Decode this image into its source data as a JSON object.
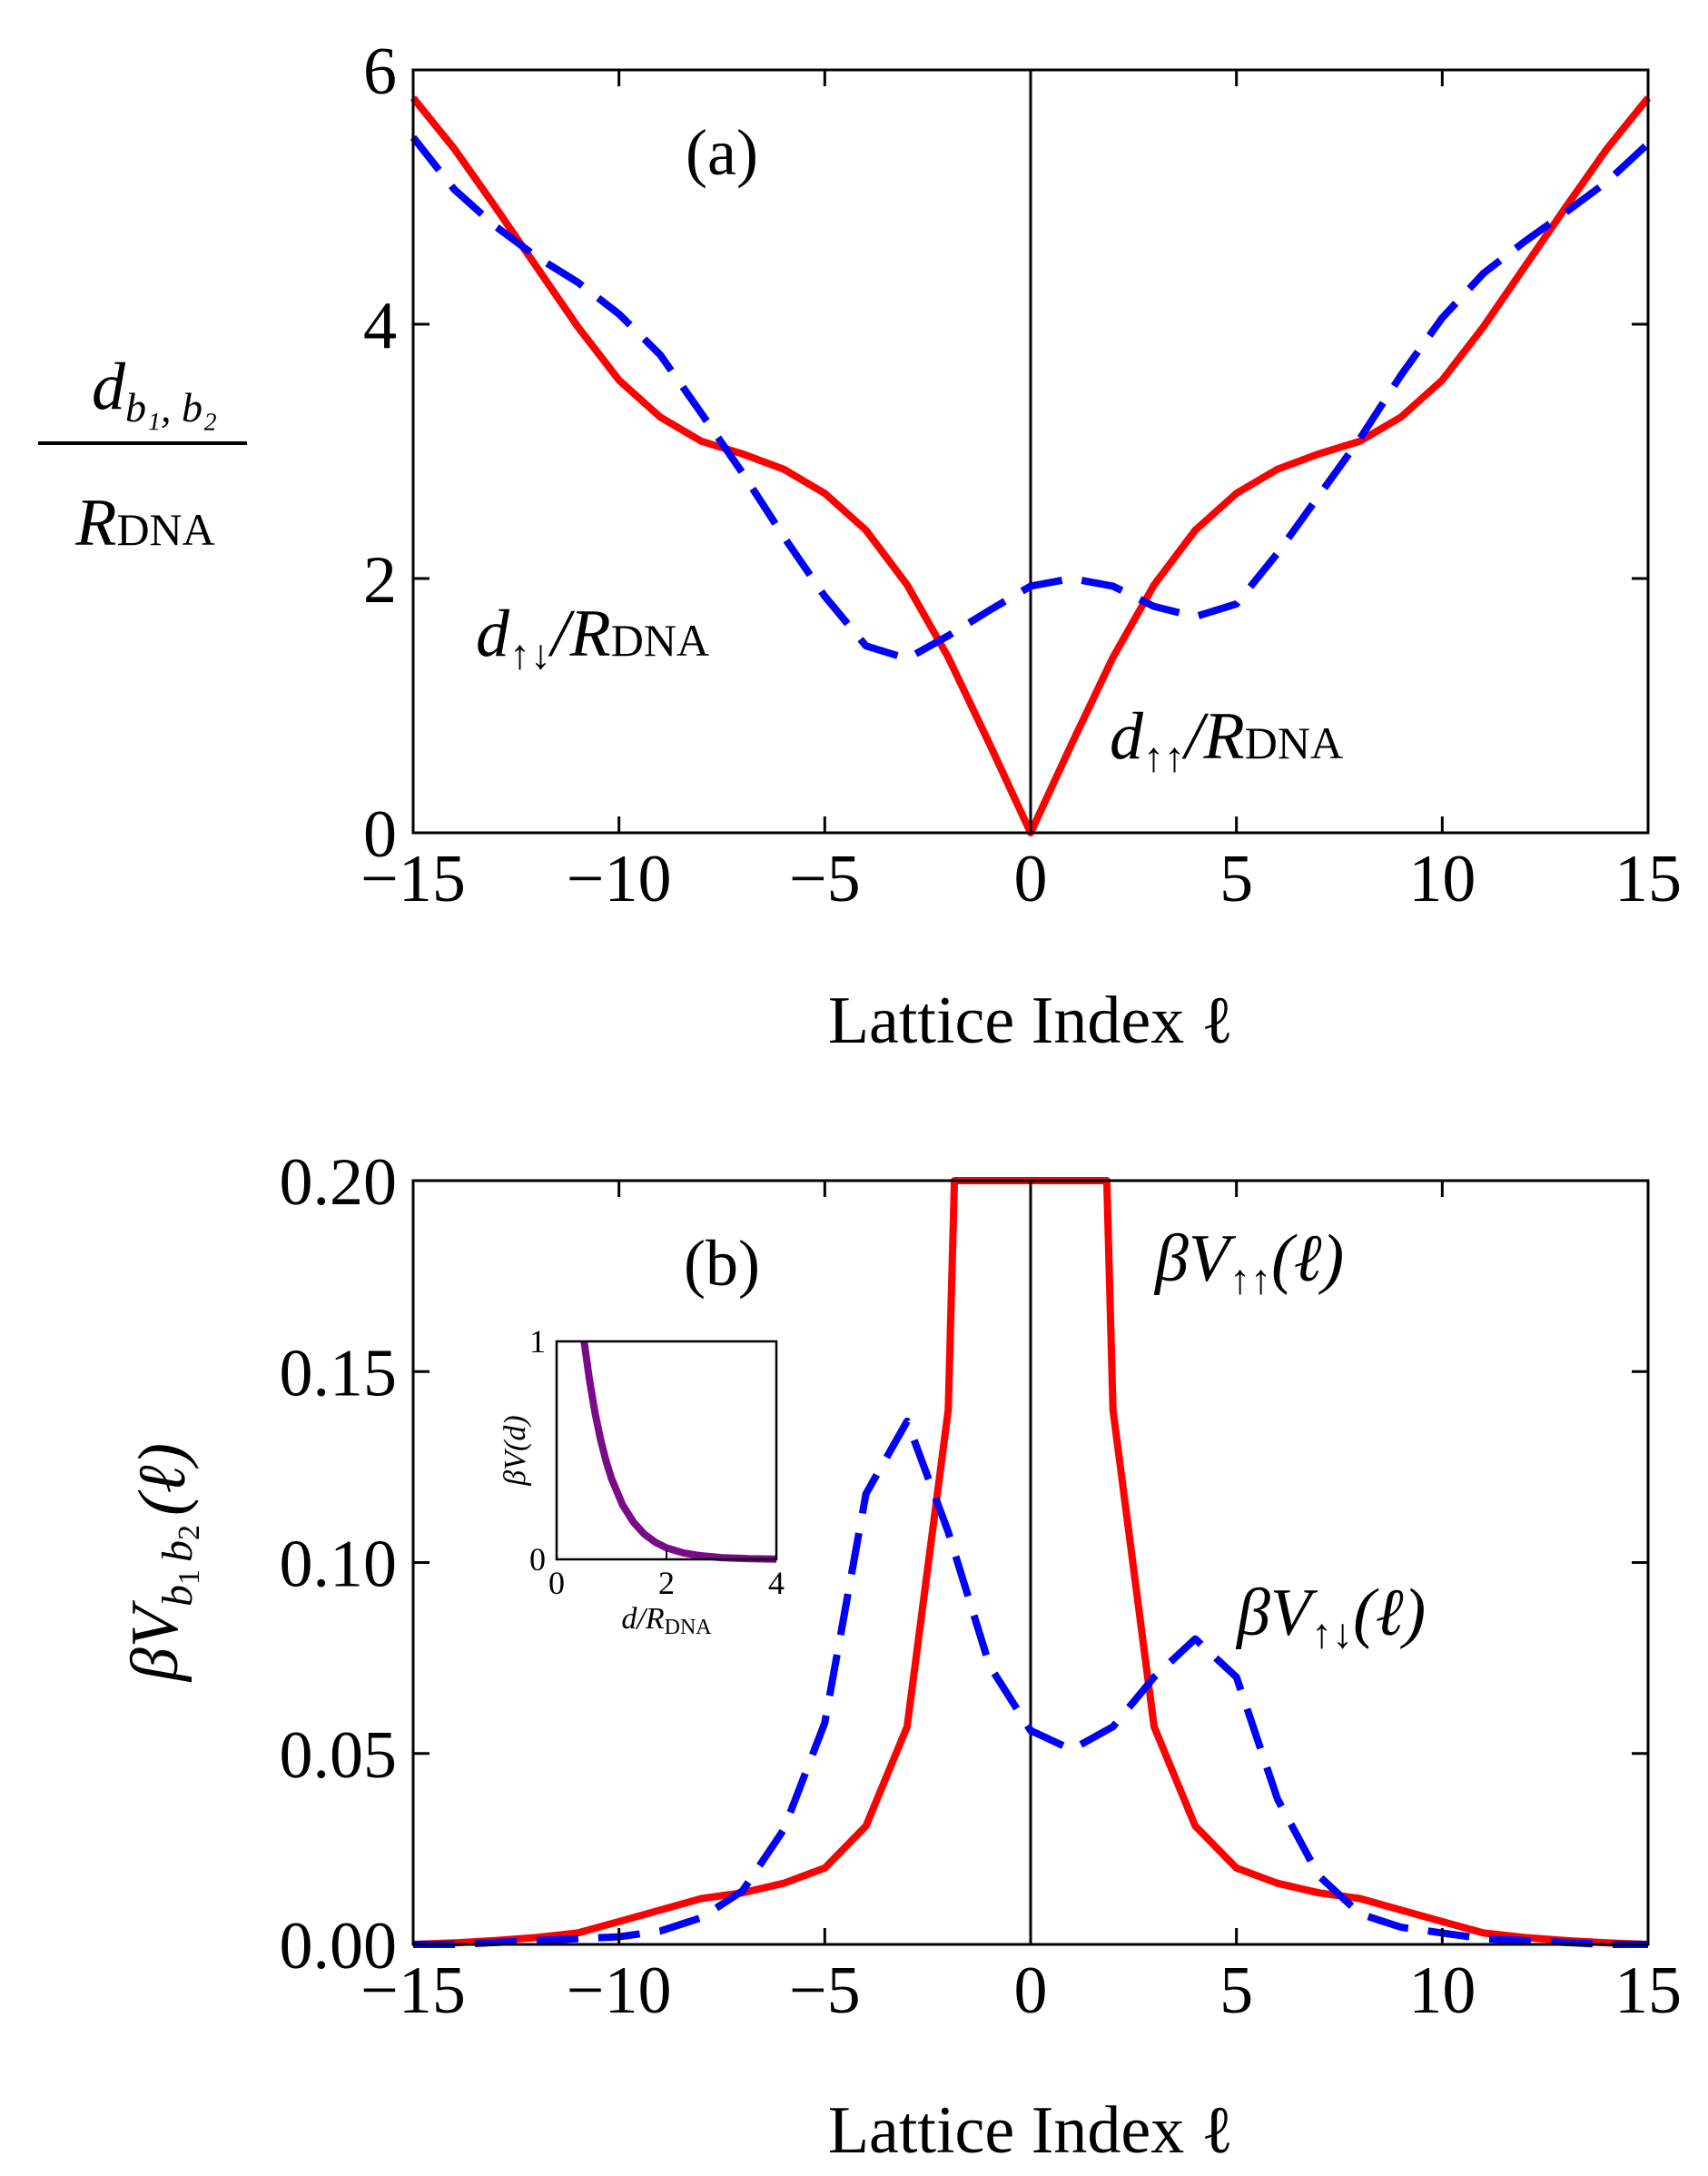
{
  "chart_data": [
    {
      "type": "line",
      "panel_label": "(a)",
      "xlabel": "Lattice Index ℓ",
      "ylabel": {
        "numerator": "d",
        "numerator_sub": "b₁, b₂",
        "denominator": "R",
        "denominator_sub": "DNA"
      },
      "xlim": [
        -15,
        15
      ],
      "ylim": [
        0,
        6
      ],
      "xticks": [
        -15,
        -10,
        -5,
        0,
        5,
        10,
        15
      ],
      "xtick_labels": [
        "−15",
        "−10",
        "−5",
        "0",
        "5",
        "10",
        "15"
      ],
      "yticks": [
        0,
        2,
        4,
        6
      ],
      "ytick_labels": [
        "0",
        "2",
        "4",
        "6"
      ],
      "grid": false,
      "vertical_line_at": 0,
      "series": [
        {
          "name": "d↑↑/RDNA",
          "label_main": "d",
          "label_sub": "↑↑",
          "label_rest": "/R",
          "label_rest_sub": "DNA",
          "color": "#ff0000",
          "style": "solid",
          "x": [
            -15,
            -14,
            -13,
            -12,
            -11,
            -10,
            -9,
            -8,
            -7,
            -6,
            -5,
            -4,
            -3,
            -2,
            -1,
            0,
            1,
            2,
            3,
            4,
            5,
            6,
            7,
            8,
            9,
            10,
            11,
            12,
            13,
            14,
            15
          ],
          "values": [
            5.78,
            5.38,
            4.92,
            4.45,
            3.98,
            3.56,
            3.27,
            3.08,
            2.98,
            2.86,
            2.67,
            2.38,
            1.95,
            1.38,
            0.7,
            0,
            0.7,
            1.38,
            1.95,
            2.38,
            2.67,
            2.86,
            2.98,
            3.08,
            3.27,
            3.56,
            3.98,
            4.45,
            4.92,
            5.38,
            5.78
          ]
        },
        {
          "name": "d↑↓/RDNA",
          "label_main": "d",
          "label_sub": "↑↓",
          "label_rest": "/R",
          "label_rest_sub": "DNA",
          "color": "#0000ff",
          "style": "dashed",
          "x": [
            -15,
            -14,
            -13,
            -12,
            -11,
            -10,
            -9,
            -8,
            -7,
            -6,
            -5,
            -4,
            -3,
            -2,
            -1,
            0,
            1,
            2,
            3,
            4,
            5,
            6,
            7,
            8,
            9,
            10,
            11,
            12,
            13,
            14,
            15
          ],
          "values": [
            5.47,
            5.06,
            4.77,
            4.53,
            4.33,
            4.08,
            3.76,
            3.3,
            2.83,
            2.33,
            1.86,
            1.47,
            1.37,
            1.55,
            1.75,
            1.94,
            2.0,
            1.94,
            1.78,
            1.7,
            1.8,
            2.2,
            2.65,
            3.1,
            3.6,
            4.05,
            4.4,
            4.65,
            4.88,
            5.12,
            5.42
          ]
        }
      ]
    },
    {
      "type": "line",
      "panel_label": "(b)",
      "xlabel": "Lattice Index ℓ",
      "ylabel": {
        "main": "βV",
        "sub1": "b",
        "sub1_sub": "1",
        "sub2": "b",
        "sub2_sub": "2",
        "rest": "(ℓ)"
      },
      "xlim": [
        -15,
        15
      ],
      "ylim": [
        0,
        0.2
      ],
      "xticks": [
        -15,
        -10,
        -5,
        0,
        5,
        10,
        15
      ],
      "xtick_labels": [
        "−15",
        "−10",
        "−5",
        "0",
        "5",
        "10",
        "15"
      ],
      "yticks": [
        0,
        0.05,
        0.1,
        0.15,
        0.2
      ],
      "ytick_labels": [
        "0.00",
        "0.05",
        "0.10",
        "0.15",
        "0.20"
      ],
      "grid": false,
      "vertical_line_at": 0,
      "series": [
        {
          "name": "βV↑↑(ℓ)",
          "label_main": "βV",
          "label_sub": "↑↑",
          "label_rest": "(ℓ)",
          "color": "#ff0000",
          "style": "solid",
          "x": [
            -15,
            -14,
            -13,
            -12,
            -11,
            -10,
            -9,
            -8,
            -7,
            -6,
            -5,
            -4,
            -3,
            -2,
            -1.85,
            1.85,
            2,
            3,
            4,
            5,
            6,
            7,
            8,
            9,
            10,
            11,
            12,
            13,
            14,
            15
          ],
          "values": [
            0.0,
            0.0004,
            0.001,
            0.0018,
            0.003,
            0.006,
            0.009,
            0.012,
            0.0135,
            0.016,
            0.02,
            0.031,
            0.057,
            0.14,
            0.2,
            0.2,
            0.14,
            0.057,
            0.031,
            0.02,
            0.016,
            0.0135,
            0.012,
            0.009,
            0.006,
            0.003,
            0.0018,
            0.001,
            0.0004,
            0.0
          ]
        },
        {
          "name": "βV↑↓(ℓ)",
          "label_main": "βV",
          "label_sub": "↑↓",
          "label_rest": "(ℓ)",
          "color": "#0000ff",
          "style": "dashed",
          "x": [
            -15,
            -14,
            -13,
            -12,
            -11,
            -10,
            -9,
            -8,
            -7,
            -6,
            -5,
            -4,
            -3,
            -2,
            -1,
            0,
            1,
            2,
            3,
            4,
            5,
            6,
            7,
            8,
            9,
            10,
            11,
            12,
            13,
            14,
            15
          ],
          "values": [
            0.0,
            0.0,
            0.0005,
            0.001,
            0.0015,
            0.002,
            0.0035,
            0.007,
            0.014,
            0.03,
            0.058,
            0.118,
            0.137,
            0.108,
            0.073,
            0.056,
            0.051,
            0.057,
            0.07,
            0.08,
            0.07,
            0.038,
            0.018,
            0.008,
            0.0045,
            0.003,
            0.0015,
            0.001,
            0.0005,
            0.0,
            0.0
          ]
        }
      ],
      "inset": {
        "type": "line",
        "xlabel": "d/RDNA",
        "xlabel_main": "d",
        "xlabel_rest": "/R",
        "xlabel_sub": "DNA",
        "ylabel": "βV(d)",
        "xlim": [
          0,
          4
        ],
        "ylim": [
          0,
          1
        ],
        "xticks": [
          0,
          2,
          4
        ],
        "xtick_labels": [
          "0",
          "2",
          "4"
        ],
        "yticks": [
          0,
          1
        ],
        "ytick_labels": [
          "0",
          "1"
        ],
        "series": [
          {
            "name": "βV(d)",
            "color": "#7a0a8a",
            "style": "solid",
            "x": [
              0.5,
              0.6,
              0.7,
              0.8,
              0.9,
              1.0,
              1.2,
              1.4,
              1.6,
              1.8,
              2.0,
              2.3,
              2.6,
              3.0,
              3.5,
              4.0
            ],
            "values": [
              1.0,
              0.82,
              0.67,
              0.55,
              0.45,
              0.37,
              0.25,
              0.17,
              0.115,
              0.078,
              0.053,
              0.03,
              0.017,
              0.008,
              0.003,
              0.001
            ]
          }
        ]
      }
    }
  ]
}
